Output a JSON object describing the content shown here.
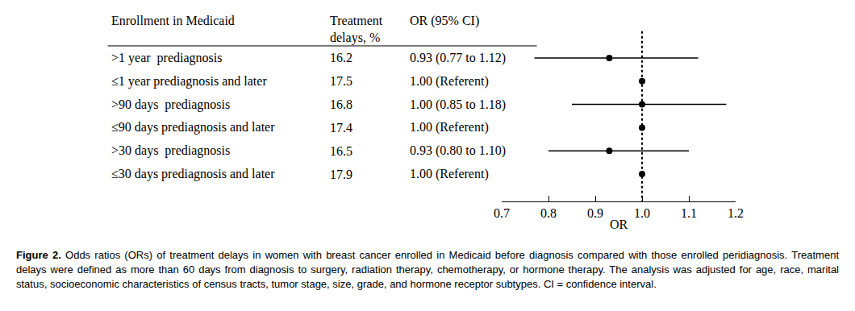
{
  "chart_data": {
    "type": "forest",
    "headers": [
      [
        "Enrollment in Medicaid"
      ],
      [
        "Treatment",
        "delays, %"
      ],
      [
        "OR (95% CI)"
      ]
    ],
    "categories": [
      ">1 year  prediagnosis",
      "≤1 year prediagnosis and later",
      ">90 days  prediagnosis",
      "≤90 days prediagnosis and later",
      ">30 days  prediagnosis",
      "≤30 days prediagnosis and later"
    ],
    "delays": [
      16.2,
      17.5,
      16.8,
      17.4,
      16.5,
      17.9
    ],
    "values": [
      0.93,
      1,
      1,
      1,
      0.93,
      1
    ],
    "value_labels": [
      "0.93 (0.77 to 1.12)",
      "1.00 (Referent)",
      "1.00 (0.85 to 1.18)",
      "1.00 (Referent)",
      "0.93 (0.80 to 1.10)",
      "1.00 (Referent)"
    ],
    "ci_lower": [
      0.77,
      null,
      0.85,
      null,
      0.8,
      null
    ],
    "ci_upper": [
      1.12,
      null,
      1.18,
      null,
      1.1,
      null
    ],
    "ref_line": 1,
    "line_style": "dot",
    "color": "#000000",
    "marker": "circle",
    "xlim": [
      0.7,
      1.2
    ],
    "xticks": [
      0.7,
      0.8,
      0.9,
      {
        "value": 1,
        "label": "1.0"
      },
      1.1,
      1.2
    ],
    "xlabel": "OR",
    "caption": {
      "label": "Figure 2.",
      "text": "Odds ratios (ORs) of treatment delays in women with breast cancer enrolled in Medicaid before diagnosis compared with those enrolled peridiagnosis. Treatment delays were defined as more than 60 days from diagnosis to surgery, radiation therapy, chemotherapy, or hormone therapy. The analysis was adjusted for age, race, marital status, socioeconomic characteristics of census tracts, tumor stage, size, grade, and hormone receptor subtypes. CI = confidence interval."
    }
  }
}
